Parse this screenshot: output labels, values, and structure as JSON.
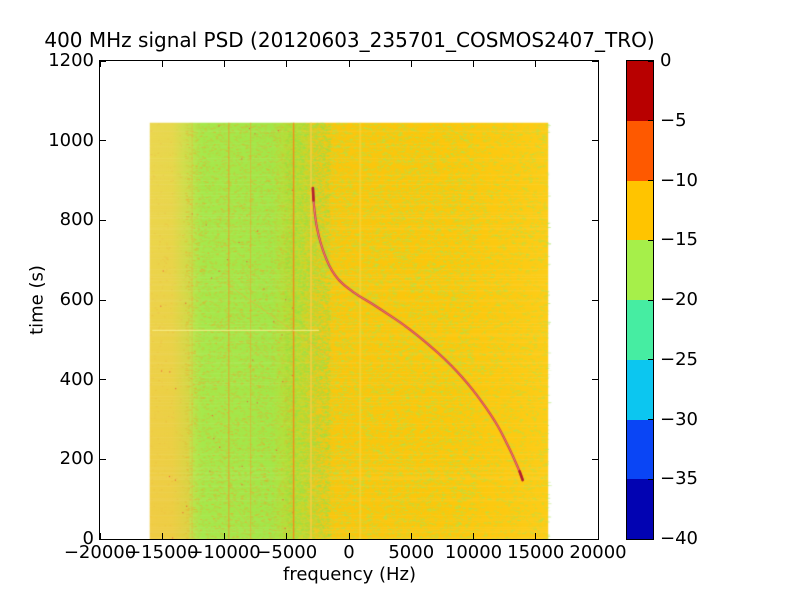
{
  "figure": {
    "title": "400 MHz signal PSD (20120603_235701_COSMOS2407_TRO)"
  },
  "axes": {
    "xlabel": "frequency (Hz)",
    "ylabel": "time (s)",
    "xlim": [
      -20000,
      20000
    ],
    "ylim": [
      0,
      1200
    ],
    "xticks": [
      -20000,
      -15000,
      -10000,
      -5000,
      0,
      5000,
      10000,
      15000,
      20000
    ],
    "xtick_labels": [
      "−20000",
      "−15000",
      "−10000",
      "−5000",
      "0",
      "5000",
      "10000",
      "15000",
      "20000"
    ],
    "yticks": [
      0,
      200,
      400,
      600,
      800,
      1000,
      1200
    ],
    "ytick_labels": [
      "0",
      "200",
      "400",
      "600",
      "800",
      "1000",
      "1200"
    ]
  },
  "colorbar": {
    "levels_db": [
      0,
      -5,
      -10,
      -15,
      -20,
      -25,
      -30,
      -35,
      -40
    ],
    "tick_labels": [
      "0",
      "−5",
      "−10",
      "−15",
      "−20",
      "−25",
      "−30",
      "−35",
      "−40"
    ],
    "band_colors_top_to_bottom": [
      "#b80000",
      "#fe5900",
      "#ffc400",
      "#a6ef4a",
      "#46eda2",
      "#0cc6f0",
      "#0a45f5",
      "#0203b2"
    ]
  },
  "chart_data": {
    "type": "heatmap",
    "title": "400 MHz signal PSD (20120603_235701_COSMOS2407_TRO)",
    "xlabel": "frequency (Hz)",
    "ylabel": "time (s)",
    "xlim": [
      -20000,
      20000
    ],
    "ylim": [
      0,
      1200
    ],
    "colorbar_range_db": [
      0,
      -40
    ],
    "data_extent": {
      "freq_hz": [
        -16000,
        16000
      ],
      "time_s": [
        0,
        1045
      ]
    },
    "background_profile": [
      {
        "freq_hz": -16000,
        "color": "#ebd94f",
        "approx_psd_db": -14
      },
      {
        "freq_hz": -14200,
        "color": "#e6da4c",
        "approx_psd_db": -14
      },
      {
        "freq_hz": -13000,
        "color": "#c6e34c",
        "approx_psd_db": -16
      },
      {
        "freq_hz": -11800,
        "color": "#a6e84b",
        "approx_psd_db": -17
      },
      {
        "freq_hz": -6200,
        "color": "#a3e748",
        "approx_psd_db": -17
      },
      {
        "freq_hz": -4200,
        "color": "#c3da2e",
        "approx_psd_db": -15
      },
      {
        "freq_hz": -2600,
        "color": "#f0c71a",
        "approx_psd_db": -13
      },
      {
        "freq_hz": -1200,
        "color": "#fac60e",
        "approx_psd_db": -12
      },
      {
        "freq_hz": 8000,
        "color": "#fcc70c",
        "approx_psd_db": -12
      },
      {
        "freq_hz": 13000,
        "color": "#fcca12",
        "approx_psd_db": -12
      },
      {
        "freq_hz": 16000,
        "color": "#fccd18",
        "approx_psd_db": -12
      }
    ],
    "left_band_bottom_tint": {
      "freq_range_hz": [
        -16000,
        -12800
      ],
      "color": "rgba(248,190,50,0.45)"
    },
    "vertical_interference_lines": [
      {
        "freq_hz": -12600,
        "color": "rgba(238,176,62,0.40)",
        "width": 1
      },
      {
        "freq_hz": -9650,
        "color": "rgba(240,150,40,0.80)",
        "width": 1
      },
      {
        "freq_hz": -7900,
        "color": "rgba(240,160,50,0.55)",
        "width": 1
      },
      {
        "freq_hz": -4450,
        "color": "rgba(242,138,28,0.90)",
        "width": 1.5
      },
      {
        "freq_hz": -3050,
        "color": "rgba(250,205,70,0.70)",
        "width": 2
      },
      {
        "freq_hz": 900,
        "color": "rgba(253,214,70,0.50)",
        "width": 2
      }
    ],
    "horizontal_scan_line": {
      "time_s": 525,
      "freq_range_hz": [
        -15800,
        -2400
      ],
      "color": "rgba(250,242,150,0.9)"
    },
    "diagonal_traces": [
      {
        "t1": 640,
        "f1": -9800,
        "t2": 452,
        "f2": -1300,
        "color": "rgba(243,172,60,0.50)"
      },
      {
        "t1": 130,
        "f1": -10300,
        "t2": 12,
        "f2": -7500,
        "color": "rgba(243,172,60,0.35)"
      }
    ],
    "doppler_track": {
      "color": "#c93440",
      "highlight_color": "rgba(255,160,160,0.85)",
      "points_time_s_freq_hz": [
        [
          148,
          13950
        ],
        [
          170,
          13700
        ],
        [
          195,
          13350
        ],
        [
          220,
          13000
        ],
        [
          245,
          12600
        ],
        [
          270,
          12200
        ],
        [
          300,
          11650
        ],
        [
          330,
          11000
        ],
        [
          360,
          10300
        ],
        [
          390,
          9550
        ],
        [
          420,
          8700
        ],
        [
          450,
          7750
        ],
        [
          480,
          6700
        ],
        [
          510,
          5550
        ],
        [
          540,
          4300
        ],
        [
          565,
          3100
        ],
        [
          590,
          1900
        ],
        [
          610,
          800
        ],
        [
          630,
          -100
        ],
        [
          650,
          -850
        ],
        [
          675,
          -1400
        ],
        [
          700,
          -1800
        ],
        [
          730,
          -2150
        ],
        [
          760,
          -2430
        ],
        [
          790,
          -2630
        ],
        [
          820,
          -2760
        ],
        [
          850,
          -2850
        ],
        [
          881,
          -2900
        ]
      ]
    }
  }
}
